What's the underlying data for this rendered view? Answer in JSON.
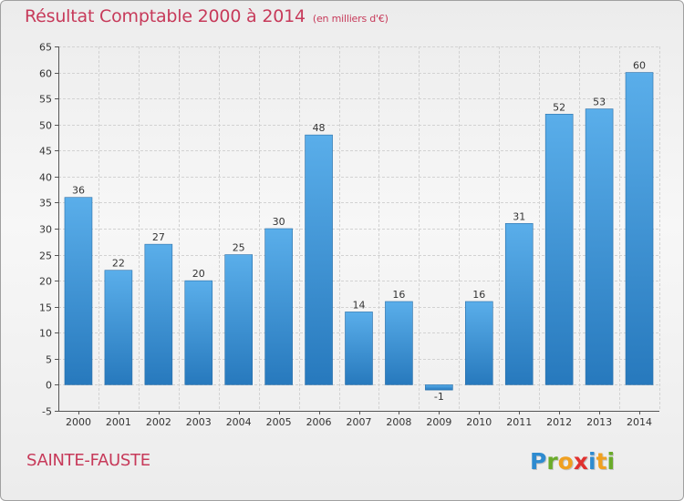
{
  "chart_data": {
    "type": "bar",
    "title": "Résultat Comptable 2000 à 2014",
    "subtitle": "(en milliers d'€)",
    "categories": [
      "2000",
      "2001",
      "2002",
      "2003",
      "2004",
      "2005",
      "2006",
      "2007",
      "2008",
      "2009",
      "2010",
      "2011",
      "2012",
      "2013",
      "2014"
    ],
    "values": [
      36,
      22,
      27,
      20,
      25,
      30,
      48,
      14,
      16,
      -1,
      16,
      31,
      52,
      53,
      60
    ],
    "ylim": [
      -5,
      65
    ],
    "yticks": [
      -5,
      0,
      5,
      10,
      15,
      20,
      25,
      30,
      35,
      40,
      45,
      50,
      55,
      60,
      65
    ],
    "grid": true,
    "xlabel": "",
    "ylabel": "",
    "bar_color": "#3b8fd6"
  },
  "footer": {
    "commune": "SAINTE-FAUSTE",
    "logo_letters": [
      "P",
      "r",
      "o",
      "x",
      "i",
      "t",
      "i"
    ],
    "logo_colors": [
      "#2e8bd0",
      "#6aab2a",
      "#f0a020",
      "#e0312f",
      "#2e8bd0",
      "#f0a020",
      "#6aab2a"
    ]
  },
  "colors": {
    "accent": "#c73a5a",
    "grid": "#d2d2d2",
    "axis": "#555555"
  }
}
